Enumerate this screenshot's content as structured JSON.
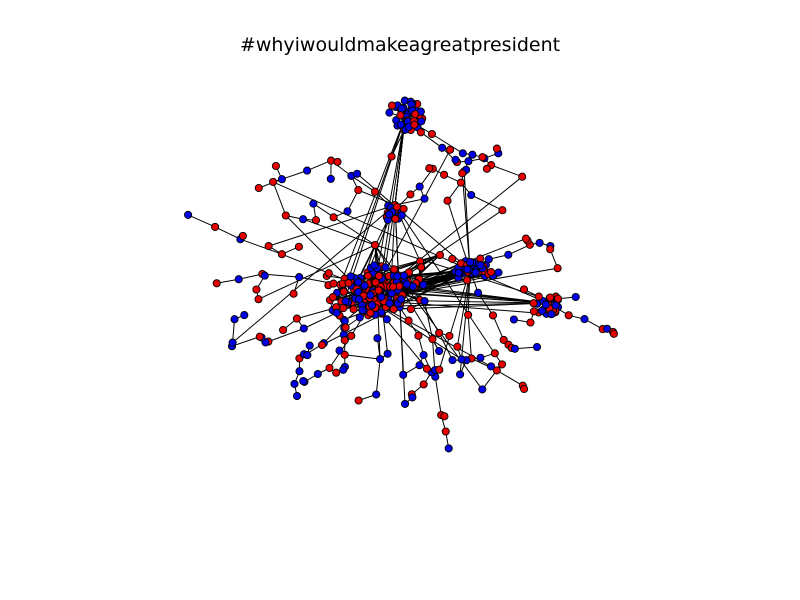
{
  "title": "#whyiwouldmakeagreatpresident",
  "colors": {
    "background": "#ffffff",
    "edge": "#000000",
    "node_outline": "#000000",
    "group_a": "#e60000",
    "group_b": "#0000e6"
  },
  "node_groups": [
    "red",
    "blue"
  ]
}
